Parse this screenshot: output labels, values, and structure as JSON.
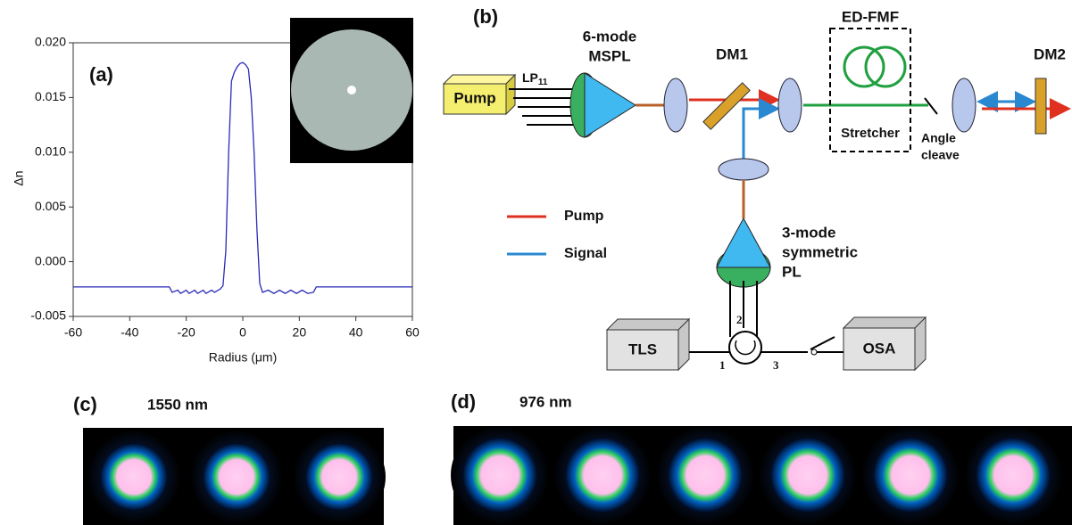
{
  "chart_data": {
    "type": "line",
    "panel_label": "(a)",
    "x_label": "Radius (μm)",
    "y_label": "Δn",
    "color": "#2a2ab8",
    "x": [
      -60,
      -26,
      -25,
      -23,
      -22,
      -20,
      -19,
      -17,
      -16,
      -14,
      -13,
      -11,
      -10,
      -8,
      -7,
      -6,
      -5,
      -4,
      -3,
      -2,
      -1,
      0,
      1,
      2,
      3,
      4,
      5,
      6,
      7,
      9,
      11,
      13,
      15,
      17,
      19,
      21,
      23,
      25,
      26,
      60
    ],
    "values": [
      -0.0023,
      -0.0023,
      -0.0028,
      -0.0026,
      -0.0029,
      -0.0026,
      -0.0029,
      -0.0026,
      -0.0029,
      -0.0026,
      -0.0029,
      -0.0026,
      -0.0028,
      -0.0025,
      -0.0022,
      0.001,
      0.01,
      0.0165,
      0.0173,
      0.0178,
      0.0181,
      0.0182,
      0.018,
      0.0176,
      0.015,
      0.01,
      0.003,
      -0.002,
      -0.0028,
      -0.0026,
      -0.0029,
      -0.0026,
      -0.0029,
      -0.0026,
      -0.0029,
      -0.0026,
      -0.0029,
      -0.0028,
      -0.0023,
      -0.0023
    ],
    "xlim": [
      -60,
      60
    ],
    "xticks": [
      -60,
      -40,
      -20,
      0,
      20,
      40,
      60
    ],
    "ylim": [
      -0.005,
      0.02
    ],
    "yticks": [
      {
        "value": -0.005,
        "label": "-0.005"
      },
      {
        "value": 0,
        "label": "0.000"
      },
      {
        "value": 0.005,
        "label": "0.005"
      },
      {
        "value": 0.01,
        "label": "0.010"
      },
      {
        "value": 0.015,
        "label": "0.015"
      },
      {
        "value": 0.02,
        "label": "0.020"
      }
    ]
  },
  "diagram": {
    "panel_label": "(b)",
    "pump_box": "Pump",
    "lp": {
      "main": "LP",
      "sub": "11"
    },
    "mspl": [
      "6-mode",
      "MSPL"
    ],
    "dm1": "DM1",
    "ed_fmf": "ED-FMF",
    "stretcher": "Stretcher",
    "angle_cleave": [
      "Angle",
      "cleave"
    ],
    "dm2": "DM2",
    "legend": [
      "Pump",
      "Signal"
    ],
    "pl": [
      "3-mode",
      "symmetric",
      "PL"
    ],
    "tls": "TLS",
    "osa": "OSA",
    "ports": [
      "1",
      "2",
      "3"
    ]
  },
  "images": [
    {
      "panel_label": "(c)",
      "wavelength": "1550 nm"
    },
    {
      "panel_label": "(d)",
      "wavelength": "976 nm"
    }
  ]
}
